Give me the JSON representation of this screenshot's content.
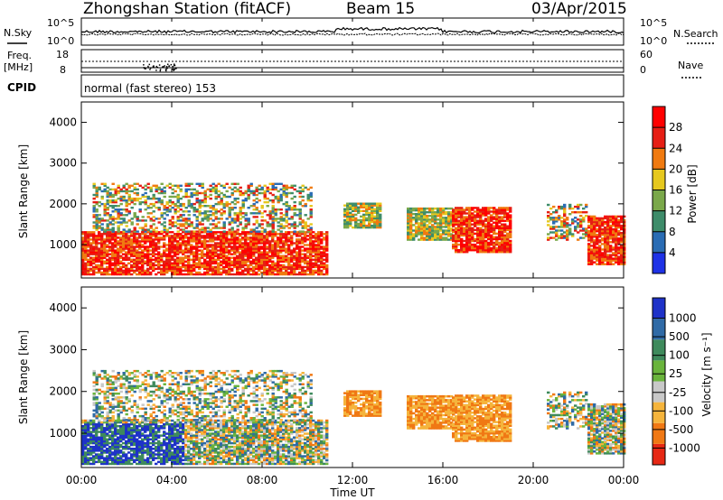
{
  "header": {
    "station": "Zhongshan Station (fitACF)",
    "beam": "Beam 15",
    "date": "03/Apr/2015"
  },
  "top_panels": {
    "nsky_label": "N.Sky",
    "nsky_ticks": [
      "10^5",
      "10^0"
    ],
    "nsearch_label": "N.Search",
    "nsearch_ticks": [
      "10^5",
      "10^0"
    ],
    "freq_label_1": "Freq.",
    "freq_label_2": "[MHz]",
    "freq_ticks": [
      "18",
      "8"
    ],
    "nave_label": "Nave",
    "nave_ticks": [
      "60",
      "0"
    ],
    "cpid_label": "CPID",
    "cpid_text": "normal (fast stereo) 153"
  },
  "chart_data": [
    {
      "type": "heatmap",
      "name": "power",
      "ylabel": "Slant Range [km]",
      "xlabel": "Time UT",
      "ylim": [
        180,
        4500
      ],
      "xlim": [
        0,
        24
      ],
      "yticks": [
        "1000",
        "2000",
        "3000",
        "4000"
      ],
      "xticks": [
        "00:00",
        "04:00",
        "08:00",
        "12:00",
        "16:00",
        "20:00",
        "00:00"
      ],
      "colorbar": {
        "label": "Power [dB]",
        "range": [
          0,
          32
        ],
        "ticks": [
          "4",
          "8",
          "12",
          "16",
          "20",
          "24",
          "28"
        ],
        "colors": [
          "#1e32e6",
          "#2a6cb4",
          "#3e8c6a",
          "#7aa84a",
          "#e6c81e",
          "#f07a10",
          "#e61e14",
          "#ff0000"
        ]
      },
      "regions": [
        {
          "t0": 0.0,
          "t1": 10.8,
          "r0": 250,
          "r1": 1300,
          "level": "high"
        },
        {
          "t0": 0.5,
          "t1": 10.2,
          "r0": 1300,
          "r1": 2500,
          "level": "mixed"
        },
        {
          "t0": 11.6,
          "t1": 13.2,
          "r0": 1400,
          "r1": 2000,
          "level": "mid"
        },
        {
          "t0": 14.4,
          "t1": 16.4,
          "r0": 1100,
          "r1": 1900,
          "level": "mid"
        },
        {
          "t0": 16.4,
          "t1": 19.0,
          "r0": 800,
          "r1": 1900,
          "level": "high"
        },
        {
          "t0": 20.6,
          "t1": 22.4,
          "r0": 1100,
          "r1": 2000,
          "level": "mixed"
        },
        {
          "t0": 22.4,
          "t1": 24.0,
          "r0": 500,
          "r1": 1700,
          "level": "high"
        }
      ]
    },
    {
      "type": "heatmap",
      "name": "velocity",
      "ylabel": "Slant Range [km]",
      "xlabel": "Time UT",
      "ylim": [
        180,
        4500
      ],
      "xlim": [
        0,
        24
      ],
      "yticks": [
        "1000",
        "2000",
        "3000",
        "4000"
      ],
      "xticks": [
        "00:00",
        "04:00",
        "08:00",
        "12:00",
        "16:00",
        "20:00",
        "00:00"
      ],
      "colorbar": {
        "label": "Velocity [m s⁻¹]",
        "ticks": [
          "1000",
          "500",
          "100",
          "25",
          "-25",
          "-100",
          "-500",
          "-1000"
        ],
        "colors": [
          "#1e32c8",
          "#2f6aa6",
          "#3e8a5c",
          "#6ab43c",
          "#c8c8c8",
          "#f5b43c",
          "#f07814",
          "#e62814"
        ]
      }
    }
  ]
}
